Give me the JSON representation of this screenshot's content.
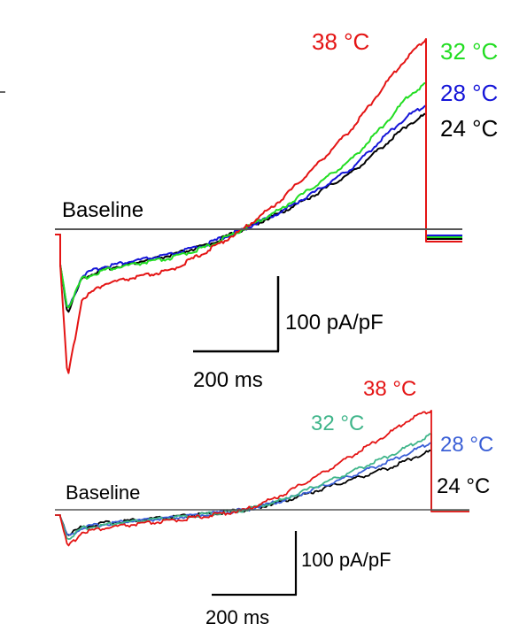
{
  "chart_data": [
    {
      "type": "line",
      "baseline_label": "Baseline",
      "scalebar": {
        "x_label": "200 ms",
        "y_label": "100 pA/pF"
      },
      "series": [
        {
          "name": "24 °C",
          "color": "#000000",
          "points": [
            [
              0,
              -40
            ],
            [
              0.02,
              -95
            ],
            [
              0.06,
              -55
            ],
            [
              0.12,
              -45
            ],
            [
              0.2,
              -38
            ],
            [
              0.3,
              -30
            ],
            [
              0.4,
              -18
            ],
            [
              0.5,
              0
            ],
            [
              0.6,
              18
            ],
            [
              0.7,
              40
            ],
            [
              0.8,
              65
            ],
            [
              0.9,
              100
            ],
            [
              0.95,
              118
            ],
            [
              1.0,
              130
            ]
          ]
        },
        {
          "name": "28 °C",
          "color": "#1515d8",
          "points": [
            [
              0,
              -40
            ],
            [
              0.02,
              -92
            ],
            [
              0.06,
              -52
            ],
            [
              0.12,
              -42
            ],
            [
              0.2,
              -36
            ],
            [
              0.3,
              -29
            ],
            [
              0.4,
              -17
            ],
            [
              0.5,
              0
            ],
            [
              0.6,
              19
            ],
            [
              0.7,
              43
            ],
            [
              0.8,
              70
            ],
            [
              0.9,
              110
            ],
            [
              0.95,
              128
            ],
            [
              1.0,
              140
            ]
          ]
        },
        {
          "name": "32 °C",
          "color": "#22dd22",
          "points": [
            [
              0,
              -40
            ],
            [
              0.02,
              -90
            ],
            [
              0.06,
              -56
            ],
            [
              0.12,
              -46
            ],
            [
              0.2,
              -40
            ],
            [
              0.3,
              -33
            ],
            [
              0.4,
              -20
            ],
            [
              0.5,
              0
            ],
            [
              0.6,
              22
            ],
            [
              0.7,
              50
            ],
            [
              0.8,
              80
            ],
            [
              0.9,
              125
            ],
            [
              0.95,
              150
            ],
            [
              1.0,
              165
            ]
          ]
        },
        {
          "name": "38 °C",
          "color": "#e41414",
          "points": [
            [
              0,
              -40
            ],
            [
              0.02,
              -170
            ],
            [
              0.06,
              -78
            ],
            [
              0.12,
              -62
            ],
            [
              0.2,
              -55
            ],
            [
              0.3,
              -47
            ],
            [
              0.4,
              -25
            ],
            [
              0.5,
              0
            ],
            [
              0.6,
              32
            ],
            [
              0.7,
              72
            ],
            [
              0.8,
              115
            ],
            [
              0.9,
              170
            ],
            [
              0.95,
              195
            ],
            [
              1.0,
              215
            ]
          ]
        }
      ]
    },
    {
      "type": "line",
      "baseline_label": "Baseline",
      "scalebar": {
        "x_label": "200 ms",
        "y_label": "100 pA/pF"
      },
      "series": [
        {
          "name": "24 °C",
          "color": "#000000",
          "points": [
            [
              0,
              -8
            ],
            [
              0.02,
              -30
            ],
            [
              0.06,
              -20
            ],
            [
              0.15,
              -14
            ],
            [
              0.3,
              -9
            ],
            [
              0.4,
              -5
            ],
            [
              0.5,
              0
            ],
            [
              0.6,
              10
            ],
            [
              0.7,
              24
            ],
            [
              0.8,
              38
            ],
            [
              0.9,
              52
            ],
            [
              0.95,
              62
            ],
            [
              1.0,
              70
            ]
          ]
        },
        {
          "name": "28 °C",
          "color": "#3a5fd6",
          "points": [
            [
              0,
              -8
            ],
            [
              0.02,
              -32
            ],
            [
              0.06,
              -21
            ],
            [
              0.15,
              -15
            ],
            [
              0.3,
              -10
            ],
            [
              0.4,
              -5
            ],
            [
              0.5,
              0
            ],
            [
              0.6,
              11
            ],
            [
              0.7,
              27
            ],
            [
              0.8,
              43
            ],
            [
              0.9,
              60
            ],
            [
              0.95,
              70
            ],
            [
              1.0,
              80
            ]
          ]
        },
        {
          "name": "32 °C",
          "color": "#3fb58a",
          "points": [
            [
              0,
              -8
            ],
            [
              0.02,
              -35
            ],
            [
              0.06,
              -22
            ],
            [
              0.15,
              -16
            ],
            [
              0.3,
              -10
            ],
            [
              0.4,
              -5
            ],
            [
              0.5,
              0
            ],
            [
              0.6,
              12
            ],
            [
              0.7,
              30
            ],
            [
              0.8,
              48
            ],
            [
              0.9,
              67
            ],
            [
              0.95,
              78
            ],
            [
              1.0,
              90
            ]
          ]
        },
        {
          "name": "38 °C",
          "color": "#e41414",
          "points": [
            [
              0,
              -8
            ],
            [
              0.02,
              -45
            ],
            [
              0.06,
              -26
            ],
            [
              0.15,
              -20
            ],
            [
              0.3,
              -13
            ],
            [
              0.4,
              -7
            ],
            [
              0.5,
              0
            ],
            [
              0.6,
              18
            ],
            [
              0.7,
              42
            ],
            [
              0.8,
              68
            ],
            [
              0.9,
              95
            ],
            [
              0.95,
              110
            ],
            [
              1.0,
              118
            ]
          ]
        }
      ]
    }
  ]
}
